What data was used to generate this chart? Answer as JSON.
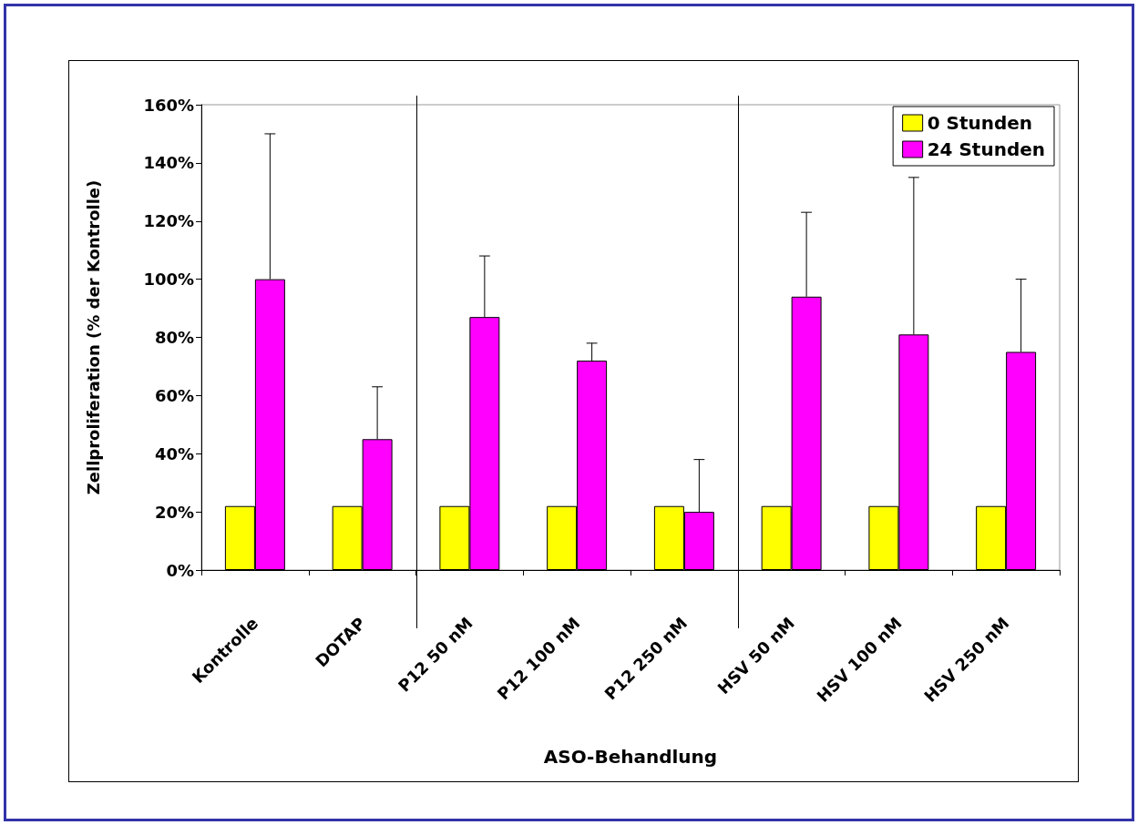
{
  "chart_data": {
    "type": "bar",
    "xlabel": "ASO-Behandlung",
    "ylabel": "Zellproliferation (% der Kontrolle)",
    "categories": [
      "Kontrolle",
      "DOTAP",
      "P12 50 nM",
      "P12 100 nM",
      "P12 250 nM",
      "HSV 50 nM",
      "HSV 100 nM",
      "HSV 250 nM"
    ],
    "series": [
      {
        "name": "0 Stunden",
        "color": "#ffff00",
        "values": [
          22,
          22,
          22,
          22,
          22,
          22,
          22,
          22
        ]
      },
      {
        "name": "24 Stunden",
        "color": "#ff00ff",
        "values": [
          100,
          45,
          87,
          72,
          20,
          94,
          81,
          75
        ],
        "errors": [
          [
            100,
            150
          ],
          [
            45,
            63
          ],
          [
            87,
            108
          ],
          [
            72,
            78
          ],
          [
            20,
            38
          ],
          [
            94,
            123
          ],
          [
            81,
            135
          ],
          [
            75,
            100
          ]
        ]
      }
    ],
    "ylim": [
      0,
      160
    ],
    "yticks": [
      {
        "value": 0,
        "label": "0%"
      },
      {
        "value": 20,
        "label": "20%"
      },
      {
        "value": 40,
        "label": "40%"
      },
      {
        "value": 60,
        "label": "60%"
      },
      {
        "value": 80,
        "label": "80%"
      },
      {
        "value": 100,
        "label": "100%"
      },
      {
        "value": 120,
        "label": "120%"
      },
      {
        "value": 140,
        "label": "140%"
      },
      {
        "value": 160,
        "label": "160%"
      }
    ],
    "grid": false,
    "legend": "top right"
  }
}
